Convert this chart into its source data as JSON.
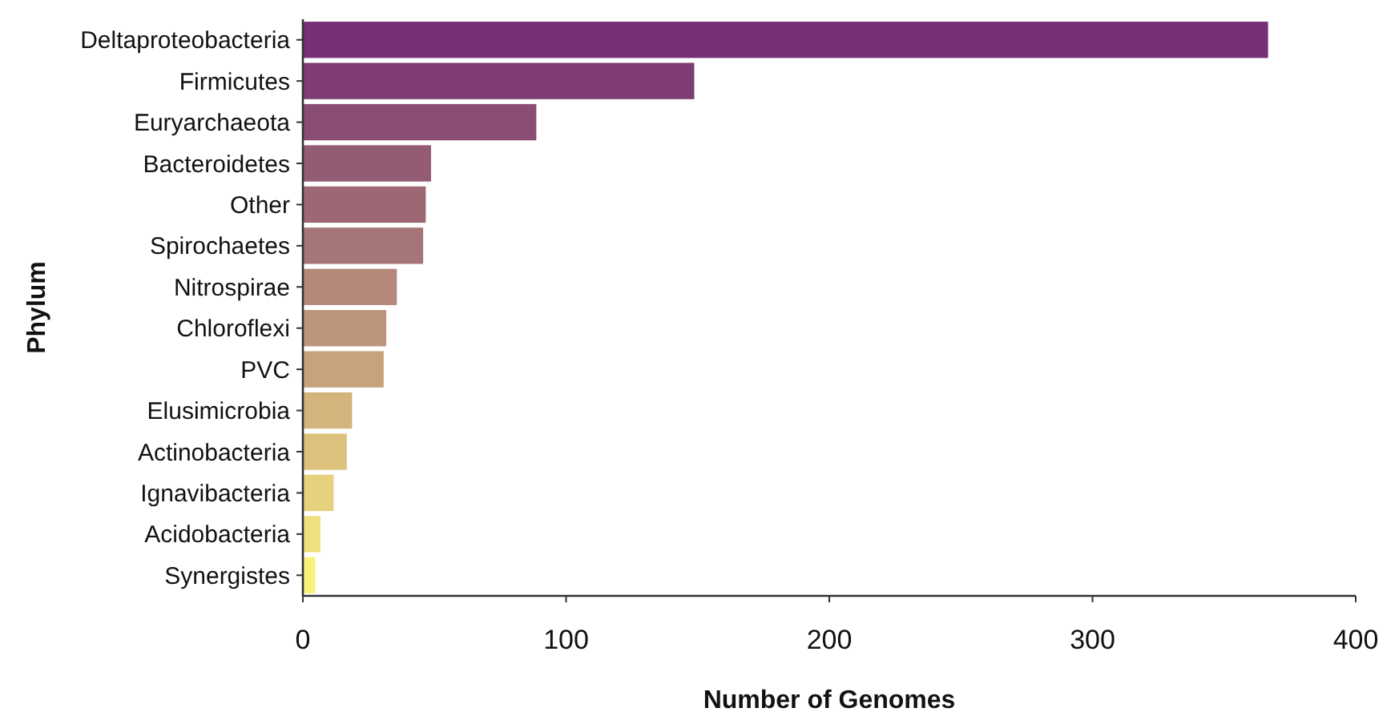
{
  "chart_data": {
    "type": "bar",
    "orientation": "horizontal",
    "xlabel": "Number of Genomes",
    "ylabel": "Phylum",
    "categories": [
      "Deltaproteobacteria",
      "Firmicutes",
      "Euryarchaeota",
      "Bacteroidetes",
      "Other",
      "Spirochaetes",
      "Nitrospirae",
      "Chloroflexi",
      "PVC",
      "Elusimicrobia",
      "Actinobacteria",
      "Ignavibacteria",
      "Acidobacteria",
      "Synergistes"
    ],
    "values": [
      367,
      149,
      89,
      49,
      47,
      46,
      36,
      32,
      31,
      19,
      17,
      12,
      7,
      5
    ],
    "colors": [
      "#772f76",
      "#7e3b74",
      "#8a4d74",
      "#935b74",
      "#9d6874",
      "#a67577",
      "#b4887a",
      "#bd957b",
      "#c6a37b",
      "#d2b47c",
      "#dcc17d",
      "#e6d17d",
      "#efe07d",
      "#f8f17c"
    ],
    "xlim": [
      0,
      400
    ],
    "xticks": [
      0,
      100,
      200,
      300,
      400
    ]
  }
}
